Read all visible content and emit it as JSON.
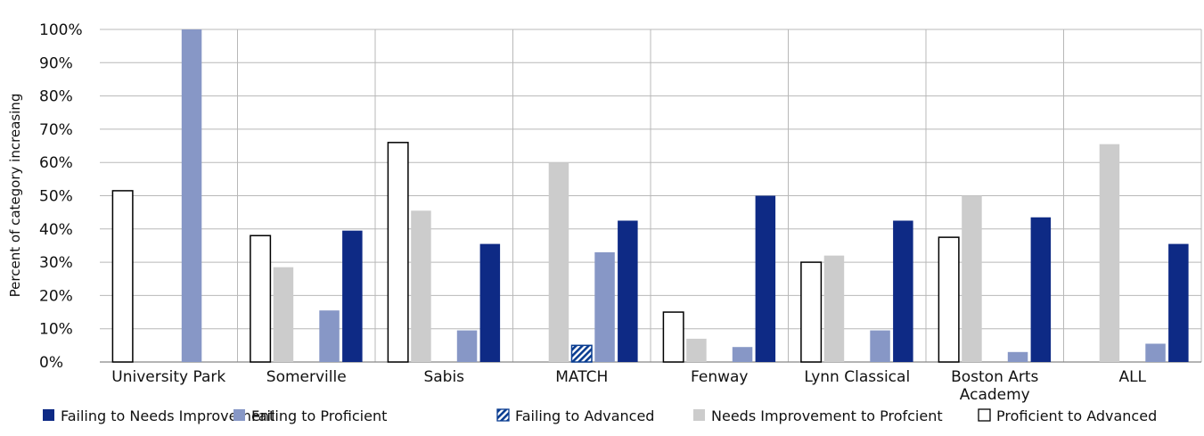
{
  "chart_data": {
    "type": "bar",
    "title": "",
    "ylabel": "Percent of category increasing",
    "xlabel": "",
    "ylim": [
      0,
      100
    ],
    "yticks": [
      0,
      10,
      20,
      30,
      40,
      50,
      60,
      70,
      80,
      90,
      100
    ],
    "ytick_format": "percent",
    "grid": true,
    "legend_position": "bottom",
    "categories": [
      "University Park",
      "Somerville",
      "Sabis",
      "MATCH",
      "Fenway",
      "Lynn Classical",
      "Boston Arts Academy",
      "ALL"
    ],
    "category_lines": [
      [
        "University Park"
      ],
      [
        "Somerville"
      ],
      [
        "Sabis"
      ],
      [
        "MATCH"
      ],
      [
        "Fenway"
      ],
      [
        "Lynn Classical"
      ],
      [
        "Boston Arts",
        "Academy"
      ],
      [
        "ALL"
      ]
    ],
    "series": [
      {
        "name": "Proficient to Advanced",
        "fill": "#ffffff",
        "stroke": "#000000",
        "pattern": "none",
        "values": [
          51.5,
          38,
          66,
          0,
          15,
          30,
          37.5,
          0
        ]
      },
      {
        "name": "Needs Improvement to Profcient",
        "fill": "#cccccc",
        "stroke": "none",
        "pattern": "none",
        "values": [
          0,
          28.5,
          45.5,
          60,
          7,
          32,
          50,
          65.5
        ]
      },
      {
        "name": "Failing to Advanced",
        "fill": "#0a3d91",
        "stroke": "#0a3d91",
        "pattern": "diagonal",
        "values": [
          0,
          0,
          0,
          5,
          0,
          0,
          0,
          0
        ]
      },
      {
        "name": "Failing to Proficient",
        "fill": "#8797c6",
        "stroke": "none",
        "pattern": "none",
        "values": [
          100,
          15.5,
          9.5,
          33,
          4.5,
          9.5,
          3,
          5.5
        ]
      },
      {
        "name": "Failing to Needs Improvement",
        "fill": "#0e2a85",
        "stroke": "none",
        "pattern": "none",
        "values": [
          0,
          39.5,
          35.5,
          42.5,
          50,
          42.5,
          43.5,
          35.5
        ]
      }
    ],
    "legend_order": [
      "Failing to Needs Improvement",
      "Failing to Proficient",
      "Failing to Advanced",
      "Needs Improvement to Profcient",
      "Proficient to Advanced"
    ]
  }
}
